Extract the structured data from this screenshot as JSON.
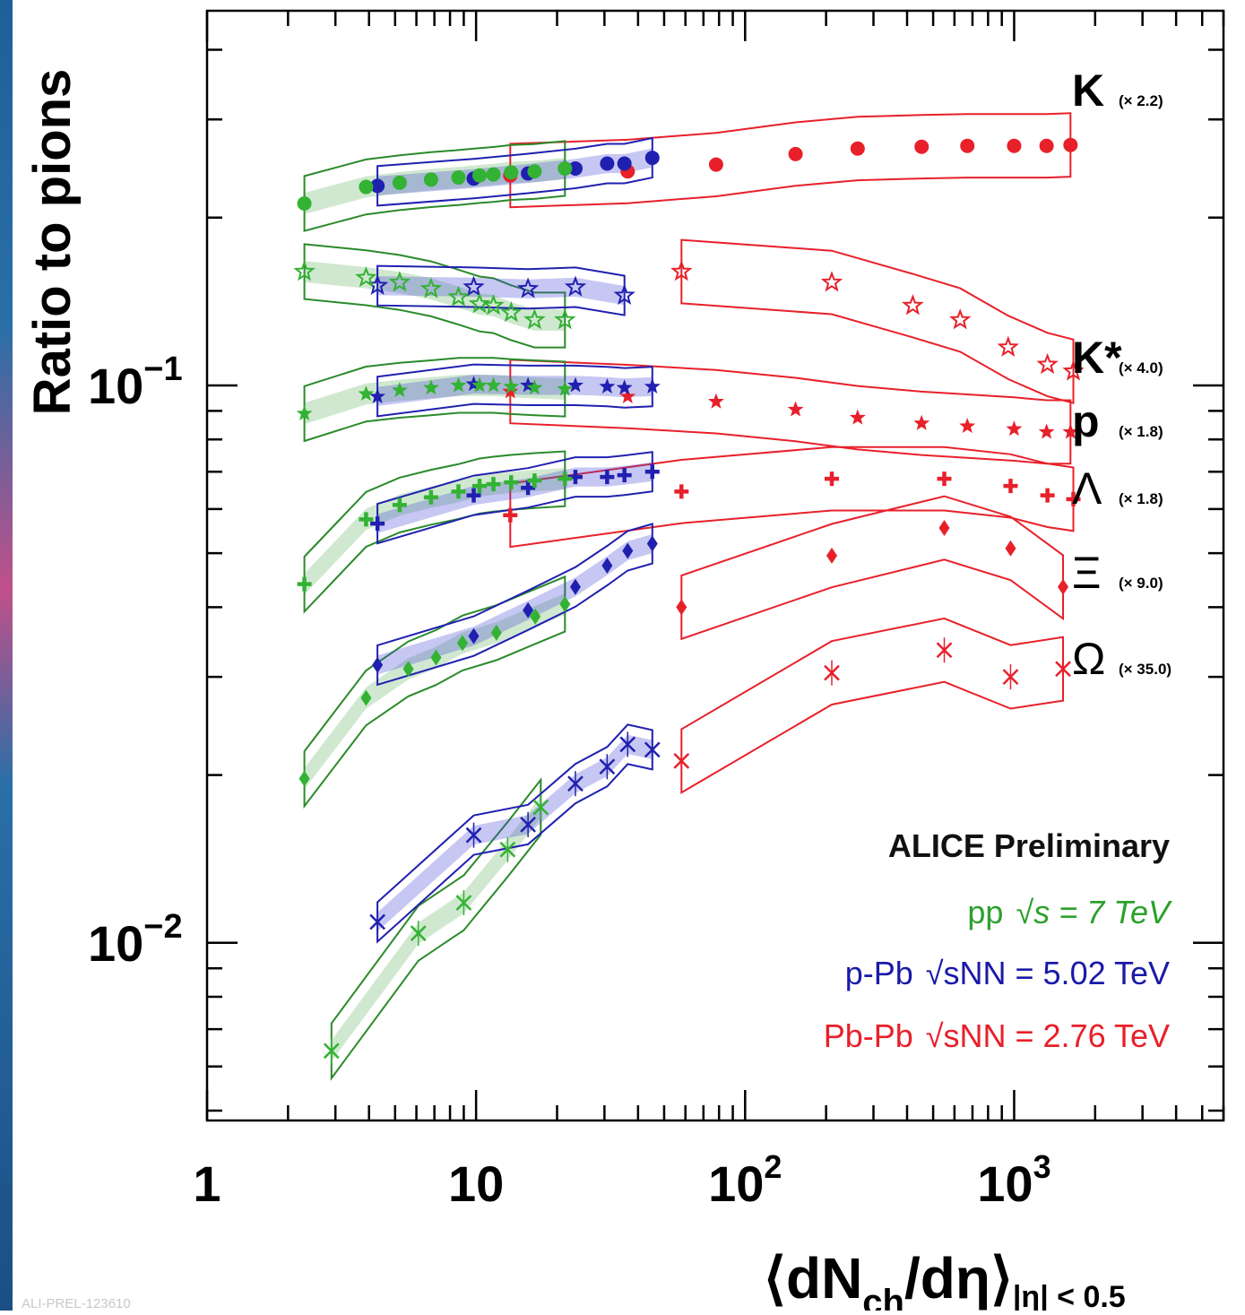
{
  "chart_data": {
    "type": "scatter",
    "title": "",
    "ylabel": "Ratio to pions",
    "xlabel": {
      "main": "⟨dN",
      "sub": "ch",
      "mid": "/dη⟩",
      "cut": "|η| < 0.5"
    },
    "xscale": "log",
    "yscale": "log",
    "xlim": [
      1,
      6000
    ],
    "ylim": [
      0.0048,
      0.47
    ],
    "x_ticks": [
      "1",
      "10",
      "10^2",
      "10^3"
    ],
    "y_ticks": [
      "10^-1",
      "10^-2"
    ],
    "grid": false,
    "annotation": "ALICE Preliminary",
    "legend": {
      "placement": "bottom-right",
      "entries": [
        {
          "system": "pp",
          "energy": "s = 7 TeV",
          "color": "#2ca02c"
        },
        {
          "system": "p-Pb",
          "energy": "sNN = 5.02 TeV",
          "color": "#1a1aa8"
        },
        {
          "system": "Pb-Pb",
          "energy": "sNN = 2.76 TeV",
          "color": "#e8202a"
        }
      ]
    },
    "colors": {
      "pp": "#33b233",
      "ppBand": "#2a8a2a",
      "pPb": "#2020b0",
      "PbPb": "#e8202a"
    },
    "groups": [
      {
        "particle": "K",
        "scale": "(× 2.2)",
        "pp": {
          "x": [
            2.3,
            3.9,
            5.2,
            6.8,
            8.6,
            10.3,
            11.6,
            13.5,
            16.5,
            21.4
          ],
          "y": [
            0.212,
            0.227,
            0.231,
            0.234,
            0.236,
            0.238,
            0.239,
            0.241,
            0.242,
            0.245
          ]
        },
        "pPb": {
          "x": [
            4.3,
            9.8,
            15.6,
            23.4,
            30.7,
            35.6,
            45.2
          ],
          "y": [
            0.228,
            0.235,
            0.24,
            0.245,
            0.25,
            0.25,
            0.256
          ]
        },
        "PbPb": {
          "x": [
            13.4,
            36.6,
            78,
            154,
            262,
            453,
            670,
            1000,
            1320,
            1620
          ],
          "y": [
            0.238,
            0.242,
            0.249,
            0.26,
            0.266,
            0.268,
            0.269,
            0.269,
            0.269,
            0.27
          ]
        }
      },
      {
        "particle": "K*",
        "scale": "(× 4.0)",
        "pp": {
          "x": [
            2.3,
            3.9,
            5.2,
            6.8,
            8.6,
            10.3,
            11.6,
            13.5,
            16.5,
            21.4
          ],
          "y": [
            0.16,
            0.156,
            0.153,
            0.149,
            0.144,
            0.14,
            0.139,
            0.135,
            0.131,
            0.131
          ]
        },
        "pPb": {
          "x": [
            4.3,
            9.8,
            15.6,
            23.4,
            35.6
          ],
          "y": [
            0.151,
            0.15,
            0.149,
            0.15,
            0.145
          ]
        },
        "PbPb": {
          "x": [
            58,
            210,
            420,
            630,
            950,
            1330,
            1660
          ],
          "y": [
            0.16,
            0.153,
            0.139,
            0.131,
            0.117,
            0.109,
            0.106
          ]
        }
      },
      {
        "particle": "p",
        "scale": "(× 1.8)",
        "pp": {
          "x": [
            2.3,
            3.9,
            5.2,
            6.8,
            8.6,
            10.3,
            11.6,
            13.5,
            16.5,
            21.4
          ],
          "y": [
            0.089,
            0.0965,
            0.098,
            0.099,
            0.1,
            0.1,
            0.1,
            0.0995,
            0.099,
            0.0985
          ]
        },
        "pPb": {
          "x": [
            4.3,
            9.8,
            15.6,
            23.4,
            30.7,
            35.6,
            45.2
          ],
          "y": [
            0.0955,
            0.1005,
            0.1,
            0.1,
            0.0995,
            0.099,
            0.0995
          ]
        },
        "PbPb": {
          "x": [
            13.4,
            36.6,
            78,
            154,
            262,
            453,
            670,
            1000,
            1320,
            1620
          ],
          "y": [
            0.0975,
            0.0955,
            0.0935,
            0.0905,
            0.0875,
            0.0855,
            0.0845,
            0.0835,
            0.0825,
            0.0825
          ]
        }
      },
      {
        "particle": "Λ",
        "scale": "(× 1.8)",
        "pp": {
          "x": [
            2.3,
            3.9,
            5.2,
            6.8,
            8.6,
            10.3,
            11.6,
            13.5,
            16.5,
            21.4
          ],
          "y": [
            0.044,
            0.0575,
            0.061,
            0.063,
            0.0645,
            0.066,
            0.0665,
            0.067,
            0.0675,
            0.068
          ]
        },
        "pPb": {
          "x": [
            4.3,
            9.8,
            15.6,
            23.4,
            30.7,
            35.6,
            45.2
          ],
          "y": [
            0.0565,
            0.0635,
            0.0655,
            0.0685,
            0.0685,
            0.069,
            0.07
          ]
        },
        "PbPb": {
          "x": [
            13.4,
            58,
            210,
            550,
            970,
            1330,
            1660
          ],
          "y": [
            0.0585,
            0.0645,
            0.068,
            0.068,
            0.066,
            0.0635,
            0.0625
          ]
        }
      },
      {
        "particle": "Ξ",
        "scale": "(× 9.0)",
        "pp": {
          "x": [
            2.3,
            3.9,
            5.6,
            7.1,
            8.9,
            11.9,
            16.6,
            21.4
          ],
          "y": [
            0.0197,
            0.0275,
            0.031,
            0.0325,
            0.0345,
            0.036,
            0.0385,
            0.0405
          ]
        },
        "pPb": {
          "x": [
            4.3,
            9.8,
            15.6,
            23.4,
            30.7,
            36.6,
            45.2
          ],
          "y": [
            0.0315,
            0.0355,
            0.0395,
            0.0435,
            0.0475,
            0.0505,
            0.052
          ]
        },
        "PbPb": {
          "x": [
            58,
            210,
            550,
            970,
            1520
          ],
          "y": [
            0.04,
            0.0495,
            0.0555,
            0.051,
            0.0435
          ]
        }
      },
      {
        "particle": "Ω",
        "scale": "(× 35.0)",
        "pp": {
          "x": [
            2.9,
            6.1,
            9.0,
            13.1,
            17.4
          ],
          "y": [
            0.0064,
            0.0104,
            0.0118,
            0.0147,
            0.0175
          ]
        },
        "pPb": {
          "x": [
            4.3,
            9.8,
            15.6,
            23.4,
            30.7,
            36.6,
            45.2
          ],
          "y": [
            0.0109,
            0.0156,
            0.0163,
            0.0193,
            0.0207,
            0.0227,
            0.0222
          ]
        },
        "PbPb": {
          "x": [
            58,
            210,
            550,
            970,
            1520
          ],
          "y": [
            0.0212,
            0.0305,
            0.0335,
            0.03,
            0.031
          ]
        }
      }
    ]
  },
  "footer": "ALI-PREL-123610"
}
